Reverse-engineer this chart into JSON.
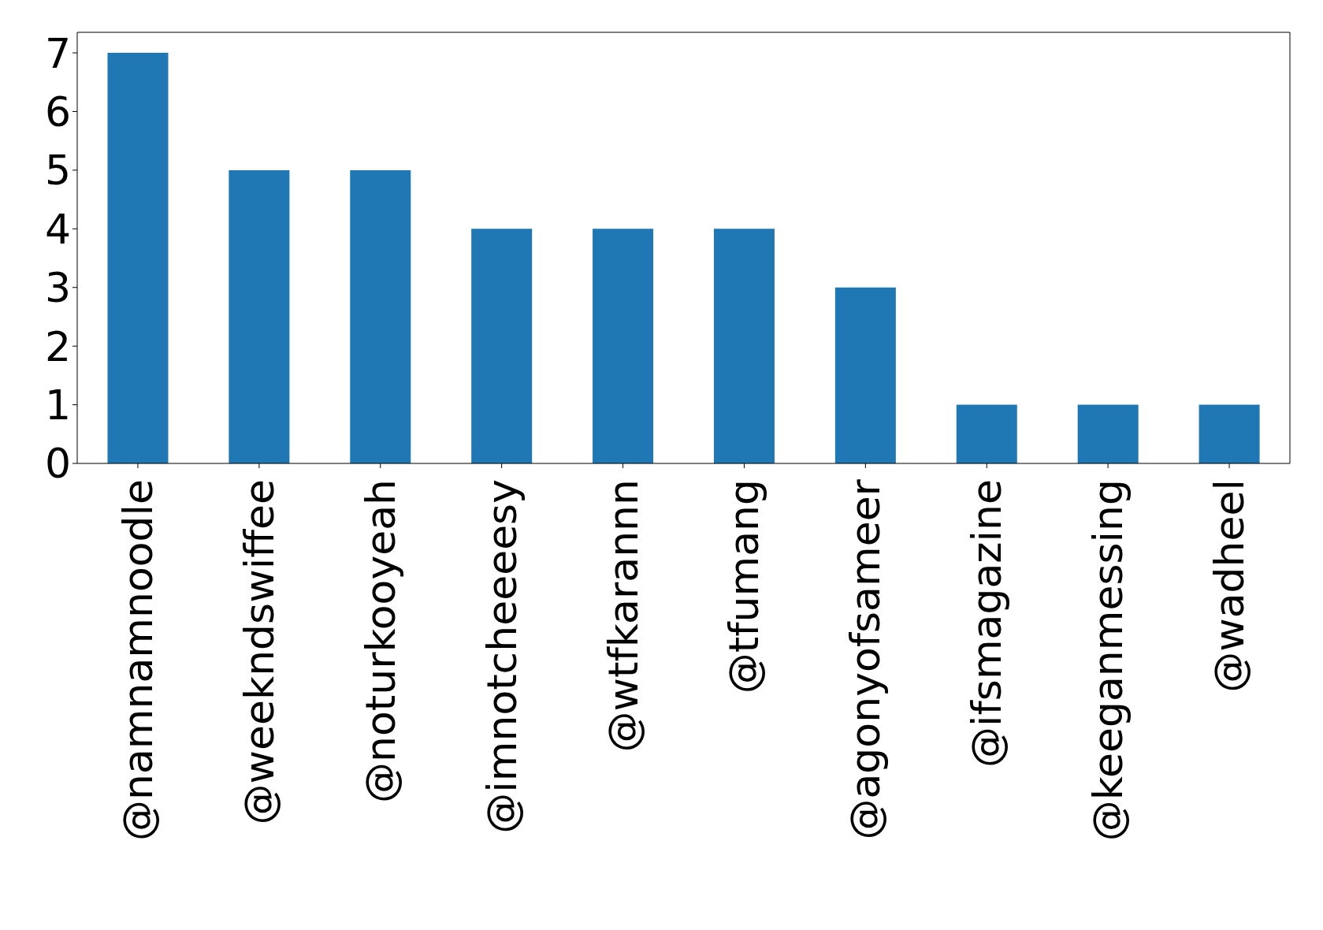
{
  "chart_data": {
    "type": "bar",
    "categories": [
      "@namnamnoodle",
      "@weekndswiffee",
      "@noturkooyeah",
      "@imnotcheeeesy",
      "@wtfkarannn",
      "@tfumang",
      "@agonyofsameer",
      "@ifsmagazine",
      "@keeganmessing",
      "@wadheel"
    ],
    "values": [
      7,
      5,
      5,
      4,
      4,
      4,
      3,
      1,
      1,
      1
    ],
    "color": "#1f77b4",
    "ylim": [
      0,
      7.35
    ],
    "yticks": [
      0,
      1,
      2,
      3,
      4,
      5,
      6,
      7
    ],
    "grid": false,
    "legend": false
  }
}
